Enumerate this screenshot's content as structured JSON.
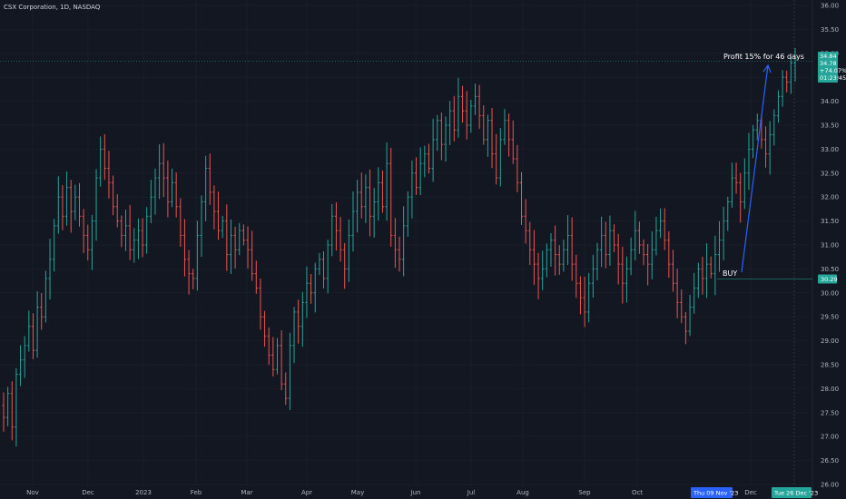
{
  "header": {
    "title": "CSX Corporation, 1D, NASDAQ"
  },
  "colors": {
    "background": "#131722",
    "up": "#26a69a",
    "down": "#ef5350",
    "grid": "#1e222d",
    "annotation": "#2962ff"
  },
  "chart_data": {
    "type": "ohlc",
    "ylim": [
      26.0,
      36.0
    ],
    "y_ticks": [
      "36.00",
      "35.50",
      "35.00",
      "34.50",
      "34.00",
      "33.50",
      "33.00",
      "32.50",
      "32.00",
      "31.50",
      "31.00",
      "30.50",
      "30.00",
      "29.50",
      "29.00",
      "28.50",
      "28.00",
      "27.50",
      "27.00",
      "26.50",
      "26.00"
    ],
    "x_ticks": [
      "Nov",
      "Dec",
      "2023",
      "Feb",
      "Mar",
      "Apr",
      "May",
      "Jun",
      "Jul",
      "Aug",
      "Sep",
      "Oct",
      "Dec"
    ],
    "closes": [
      27.4,
      27.9,
      27.2,
      28.3,
      28.6,
      28.9,
      29.3,
      28.8,
      29.7,
      29.5,
      30.3,
      30.7,
      31.4,
      32.0,
      31.6,
      32.2,
      31.7,
      32.0,
      31.6,
      31.2,
      30.9,
      31.5,
      32.4,
      33.0,
      32.6,
      32.3,
      31.8,
      31.5,
      31.2,
      31.4,
      30.9,
      31.1,
      31.3,
      31.0,
      31.6,
      32.0,
      32.4,
      32.7,
      32.4,
      31.9,
      32.3,
      31.8,
      31.2,
      30.7,
      30.4,
      30.3,
      31.2,
      31.9,
      32.6,
      32.1,
      31.7,
      31.3,
      31.5,
      30.8,
      31.2,
      30.9,
      31.3,
      31.1,
      30.9,
      30.4,
      30.1,
      29.5,
      29.1,
      28.7,
      28.4,
      28.9,
      28.1,
      27.8,
      28.9,
      29.6,
      29.3,
      29.8,
      30.2,
      30.0,
      30.5,
      30.7,
      30.3,
      31.0,
      31.6,
      31.3,
      30.9,
      30.5,
      31.2,
      31.7,
      32.1,
      31.8,
      32.2,
      31.6,
      31.9,
      32.3,
      31.8,
      32.7,
      31.2,
      30.9,
      30.7,
      31.4,
      32.0,
      32.5,
      32.2,
      32.7,
      32.9,
      32.6,
      33.2,
      33.6,
      33.1,
      33.5,
      33.8,
      33.4,
      34.1,
      33.8,
      33.5,
      33.9,
      34.1,
      33.7,
      33.2,
      33.6,
      32.9,
      32.4,
      33.2,
      33.6,
      33.2,
      32.8,
      32.3,
      31.6,
      31.3,
      30.9,
      30.6,
      30.3,
      30.5,
      30.9,
      31.1,
      30.8,
      30.6,
      30.9,
      31.2,
      30.6,
      30.2,
      29.9,
      29.6,
      30.2,
      30.5,
      30.9,
      31.2,
      30.8,
      31.3,
      31.0,
      30.6,
      30.2,
      30.5,
      30.9,
      31.3,
      31.0,
      30.8,
      30.6,
      30.9,
      31.3,
      31.5,
      31.1,
      30.6,
      30.2,
      29.8,
      29.5,
      29.2,
      29.7,
      30.1,
      30.5,
      30.3,
      30.6,
      30.4,
      30.8,
      31.1,
      31.5,
      31.9,
      32.4,
      32.3,
      31.9,
      32.5,
      33.0,
      33.4,
      33.6,
      33.2,
      32.9,
      33.3,
      33.7,
      34.1,
      34.5,
      34.4,
      34.8,
      34.9
    ]
  },
  "annotations": {
    "profit_text": "Profit 15% for 46 days",
    "buy_text": "BUY"
  },
  "price_badges": {
    "buy_price": "30.29",
    "current_price": "34.84",
    "current_close": "34.78",
    "current_change": "+74.07%",
    "countdown": "01:23:45"
  },
  "x_badges": {
    "start_date": "Thu 09 Nov '23",
    "end_date": "Tue 26 Dec '23"
  }
}
